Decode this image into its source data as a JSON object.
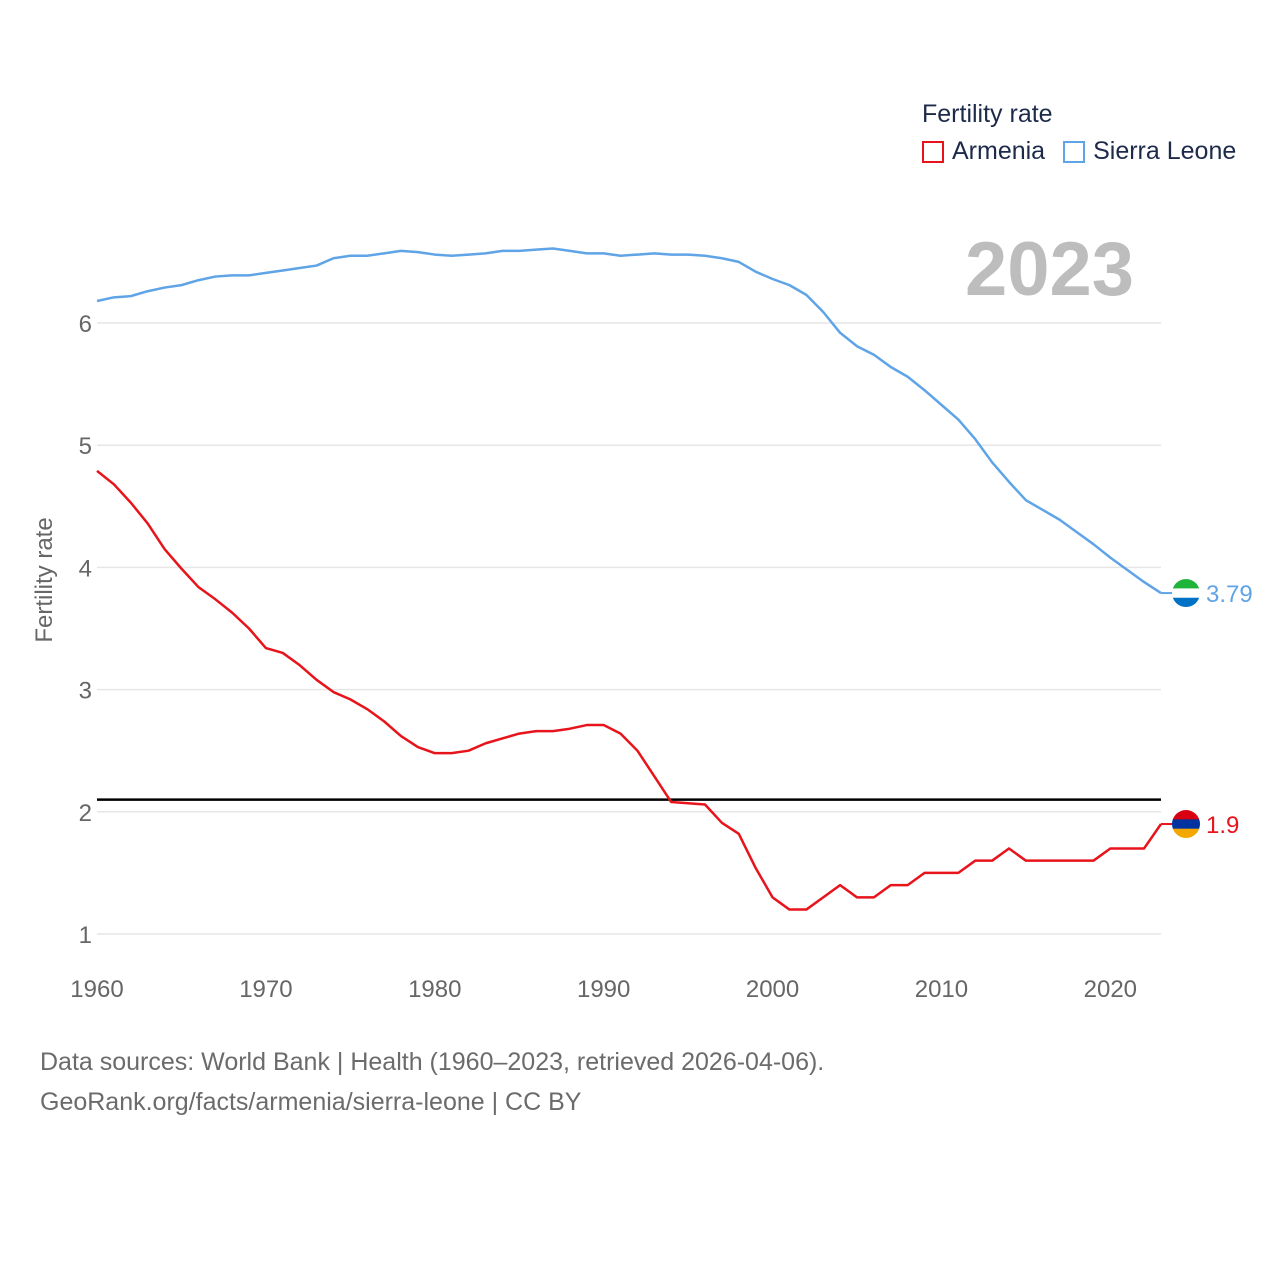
{
  "legend": {
    "title": "Fertility rate",
    "items": [
      {
        "label": "Armenia",
        "color": "#e8141c"
      },
      {
        "label": "Sierra Leone",
        "color": "#5fa4e6"
      }
    ]
  },
  "current_year": "2023",
  "footer": {
    "line1": "Data sources: World Bank | Health (1960–2023, retrieved 2026-04-06).",
    "line2": "GeoRank.org/facts/armenia/sierra-leone | CC BY"
  },
  "chart_data": {
    "type": "line",
    "title": "Fertility rate",
    "xlabel": "",
    "ylabel": "Fertility rate",
    "xlim": [
      1960,
      2023
    ],
    "ylim": [
      1,
      6.7
    ],
    "xticks": [
      1960,
      1970,
      1980,
      1990,
      2000,
      2010,
      2020
    ],
    "yticks": [
      1,
      2,
      3,
      4,
      5,
      6
    ],
    "grid": true,
    "reference_line": {
      "y": 2.1,
      "color": "#000000"
    },
    "x": [
      1960,
      1961,
      1962,
      1963,
      1964,
      1965,
      1966,
      1967,
      1968,
      1969,
      1970,
      1971,
      1972,
      1973,
      1974,
      1975,
      1976,
      1977,
      1978,
      1979,
      1980,
      1981,
      1982,
      1983,
      1984,
      1985,
      1986,
      1987,
      1988,
      1989,
      1990,
      1991,
      1992,
      1993,
      1994,
      1995,
      1996,
      1997,
      1998,
      1999,
      2000,
      2001,
      2002,
      2003,
      2004,
      2005,
      2006,
      2007,
      2008,
      2009,
      2010,
      2011,
      2012,
      2013,
      2014,
      2015,
      2016,
      2017,
      2018,
      2019,
      2020,
      2021,
      2022,
      2023
    ],
    "series": [
      {
        "name": "Armenia",
        "color": "#e8141c",
        "end_label": "1.9",
        "values": [
          4.79,
          4.68,
          4.53,
          4.36,
          4.15,
          3.99,
          3.84,
          3.74,
          3.63,
          3.5,
          3.34,
          3.3,
          3.2,
          3.08,
          2.98,
          2.92,
          2.84,
          2.74,
          2.62,
          2.53,
          2.48,
          2.48,
          2.5,
          2.56,
          2.6,
          2.64,
          2.66,
          2.66,
          2.68,
          2.71,
          2.71,
          2.64,
          2.5,
          2.29,
          2.08,
          2.07,
          2.06,
          1.91,
          1.82,
          1.54,
          1.3,
          1.2,
          1.2,
          1.3,
          1.4,
          1.3,
          1.3,
          1.4,
          1.4,
          1.5,
          1.5,
          1.5,
          1.6,
          1.6,
          1.7,
          1.6,
          1.6,
          1.6,
          1.6,
          1.6,
          1.7,
          1.7,
          1.7,
          1.9
        ]
      },
      {
        "name": "Sierra Leone",
        "color": "#5fa4e6",
        "end_label": "3.79",
        "values": [
          6.18,
          6.21,
          6.22,
          6.26,
          6.29,
          6.31,
          6.35,
          6.38,
          6.39,
          6.39,
          6.41,
          6.43,
          6.45,
          6.47,
          6.53,
          6.55,
          6.55,
          6.57,
          6.59,
          6.58,
          6.56,
          6.55,
          6.56,
          6.57,
          6.59,
          6.59,
          6.6,
          6.61,
          6.59,
          6.57,
          6.57,
          6.55,
          6.56,
          6.57,
          6.56,
          6.56,
          6.55,
          6.53,
          6.5,
          6.42,
          6.36,
          6.31,
          6.23,
          6.09,
          5.92,
          5.81,
          5.74,
          5.64,
          5.56,
          5.45,
          5.33,
          5.21,
          5.05,
          4.86,
          4.7,
          4.55,
          4.47,
          4.39,
          4.29,
          4.19,
          4.08,
          3.98,
          3.88,
          3.79
        ]
      }
    ]
  }
}
